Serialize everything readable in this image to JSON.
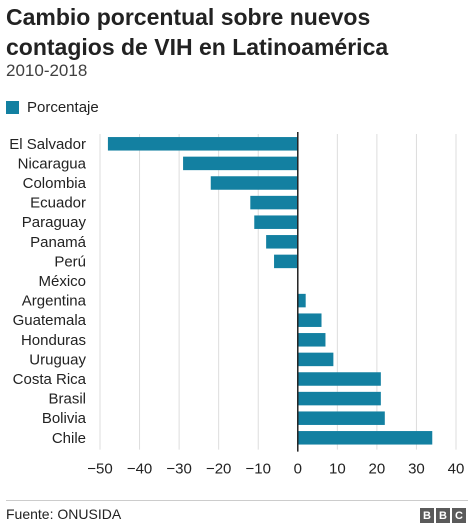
{
  "title": "Cambio porcentual sobre nuevos contagios de VIH en Latinoamérica",
  "subtitle": "2010-2018",
  "legend": {
    "label": "Porcentaje"
  },
  "colors": {
    "bar": "#1380a1",
    "grid": "#dddddd",
    "axis": "#222222"
  },
  "chart_data": {
    "type": "bar",
    "orientation": "horizontal",
    "categories": [
      "El Salvador",
      "Nicaragua",
      "Colombia",
      "Ecuador",
      "Paraguay",
      "Panamá",
      "Perú",
      "México",
      "Argentina",
      "Guatemala",
      "Honduras",
      "Uruguay",
      "Costa Rica",
      "Brasil",
      "Bolivia",
      "Chile"
    ],
    "series": [
      {
        "name": "Porcentaje",
        "values": [
          -48,
          -29,
          -22,
          -12,
          -11,
          -8,
          -6,
          0,
          2,
          6,
          7,
          9,
          21,
          21,
          22,
          34
        ]
      }
    ],
    "xlim": [
      -50,
      40
    ],
    "xticks": [
      -50,
      -40,
      -30,
      -20,
      -10,
      0,
      10,
      20,
      30,
      40
    ],
    "xtick_labels": [
      "−50",
      "−40",
      "−30",
      "−20",
      "−10",
      "0",
      "10",
      "20",
      "30",
      "40"
    ],
    "grid": true,
    "legend_position": "top-left"
  },
  "footer": {
    "source": "Fuente: ONUSIDA",
    "logo_letters": [
      "B",
      "B",
      "C"
    ]
  }
}
